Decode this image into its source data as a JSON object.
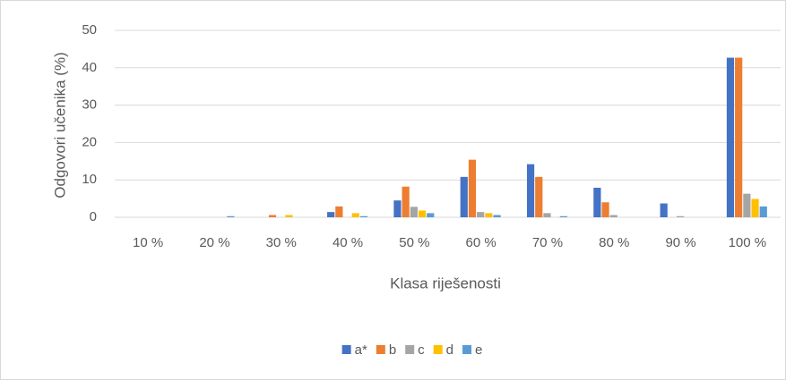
{
  "chart_data": {
    "type": "bar",
    "categories": [
      "10 %",
      "20 %",
      "30 %",
      "40 %",
      "50 %",
      "60 %",
      "70 %",
      "80 %",
      "90 %",
      "100 %"
    ],
    "series": [
      {
        "name": "a*",
        "color": "#4472c4",
        "values": [
          0,
          0,
          0,
          1.4,
          4.5,
          10.8,
          14.2,
          7.9,
          3.7,
          42.7
        ]
      },
      {
        "name": "b",
        "color": "#ed7d31",
        "values": [
          0,
          0,
          0.6,
          2.9,
          8.2,
          15.4,
          10.8,
          4.0,
          0,
          42.7
        ]
      },
      {
        "name": "c",
        "color": "#a5a5a5",
        "values": [
          0,
          0,
          0,
          0,
          2.8,
          1.4,
          1.1,
          0.6,
          0.3,
          6.3
        ]
      },
      {
        "name": "d",
        "color": "#ffc000",
        "values": [
          0,
          0,
          0.6,
          1.1,
          1.8,
          1.1,
          0,
          0,
          0,
          4.9
        ]
      },
      {
        "name": "e",
        "color": "#5b9bd5",
        "values": [
          0,
          0.3,
          0,
          0.3,
          1.1,
          0.6,
          0.3,
          0,
          0,
          2.9
        ]
      }
    ],
    "xlabel": "Klasa riješenosti",
    "ylabel": "Odgovori učenika (%)",
    "ylim": [
      0,
      50
    ],
    "yticks": [
      0,
      10,
      20,
      30,
      40,
      50
    ],
    "grid": true,
    "legend": "bottom"
  }
}
